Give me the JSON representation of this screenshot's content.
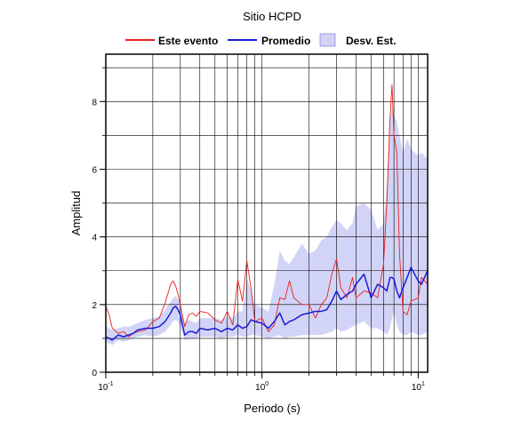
{
  "chart_data": {
    "type": "line",
    "title": "Sitio HCPD",
    "xlabel": "Periodo (s)",
    "ylabel": "Amplitud",
    "xscale": "log",
    "xlim": [
      0.1,
      11.5
    ],
    "ylim": [
      0,
      9.4
    ],
    "yticks": [
      0,
      2,
      4,
      6,
      8
    ],
    "xticks": [
      {
        "value": 0.1,
        "base": "10",
        "exp": "-1"
      },
      {
        "value": 1,
        "base": "10",
        "exp": "0"
      },
      {
        "value": 10,
        "base": "10",
        "exp": "1"
      }
    ],
    "grid": true,
    "legend_position": "top",
    "legend": [
      {
        "label": "Este evento",
        "kind": "line",
        "color": "#e8201e"
      },
      {
        "label": "Promedio",
        "kind": "line",
        "color": "#1a1ad9"
      },
      {
        "label": "Desv. Est.",
        "kind": "band",
        "color": "#d2d4f7"
      }
    ],
    "series": [
      {
        "name": "Este evento",
        "color": "#e8201e",
        "x": [
          0.1,
          0.105,
          0.11,
          0.12,
          0.13,
          0.14,
          0.15,
          0.16,
          0.18,
          0.2,
          0.22,
          0.24,
          0.26,
          0.27,
          0.28,
          0.29,
          0.3,
          0.32,
          0.34,
          0.36,
          0.38,
          0.4,
          0.45,
          0.5,
          0.55,
          0.6,
          0.65,
          0.7,
          0.75,
          0.8,
          0.85,
          0.9,
          1.0,
          1.1,
          1.2,
          1.3,
          1.4,
          1.5,
          1.6,
          1.8,
          2.0,
          2.2,
          2.4,
          2.6,
          2.8,
          3.0,
          3.2,
          3.5,
          3.8,
          4.0,
          4.5,
          5.0,
          5.5,
          6.0,
          6.3,
          6.6,
          6.8,
          7.0,
          7.3,
          7.6,
          8.0,
          8.5,
          9.0,
          10.0,
          10.5,
          11.5
        ],
        "y": [
          1.95,
          1.7,
          1.3,
          1.15,
          1.2,
          1.05,
          1.15,
          1.2,
          1.25,
          1.5,
          1.6,
          2.05,
          2.6,
          2.7,
          2.55,
          2.3,
          2.0,
          1.35,
          1.7,
          1.75,
          1.65,
          1.8,
          1.75,
          1.55,
          1.45,
          1.8,
          1.4,
          2.75,
          2.1,
          3.3,
          2.5,
          1.5,
          1.6,
          1.2,
          1.4,
          2.2,
          2.15,
          2.7,
          2.2,
          2.0,
          2.0,
          1.6,
          2.0,
          2.2,
          2.9,
          3.35,
          2.5,
          2.2,
          2.8,
          2.2,
          2.4,
          2.35,
          2.2,
          3.2,
          5.0,
          7.5,
          8.5,
          7.0,
          6.5,
          3.5,
          1.8,
          1.7,
          2.1,
          2.2,
          2.8,
          2.6
        ]
      },
      {
        "name": "Promedio",
        "color": "#1a1ad9",
        "x": [
          0.1,
          0.105,
          0.11,
          0.12,
          0.13,
          0.14,
          0.15,
          0.16,
          0.18,
          0.2,
          0.22,
          0.24,
          0.26,
          0.27,
          0.28,
          0.29,
          0.3,
          0.32,
          0.34,
          0.36,
          0.38,
          0.4,
          0.45,
          0.5,
          0.55,
          0.6,
          0.65,
          0.7,
          0.75,
          0.8,
          0.85,
          0.9,
          1.0,
          1.1,
          1.2,
          1.3,
          1.4,
          1.5,
          1.6,
          1.8,
          2.0,
          2.2,
          2.4,
          2.6,
          2.8,
          3.0,
          3.2,
          3.5,
          3.8,
          4.0,
          4.5,
          5.0,
          5.5,
          6.0,
          6.3,
          6.6,
          6.8,
          7.0,
          7.3,
          7.6,
          8.0,
          8.5,
          9.0,
          10.0,
          10.5,
          11.5
        ],
        "y": [
          1.05,
          1.0,
          0.95,
          1.1,
          1.05,
          1.1,
          1.15,
          1.25,
          1.3,
          1.3,
          1.35,
          1.5,
          1.75,
          1.9,
          1.95,
          1.85,
          1.7,
          1.1,
          1.2,
          1.2,
          1.15,
          1.3,
          1.25,
          1.3,
          1.2,
          1.3,
          1.25,
          1.4,
          1.3,
          1.35,
          1.55,
          1.5,
          1.45,
          1.3,
          1.5,
          1.75,
          1.4,
          1.5,
          1.55,
          1.7,
          1.75,
          1.8,
          1.8,
          1.85,
          2.1,
          2.4,
          2.15,
          2.3,
          2.4,
          2.6,
          2.9,
          2.2,
          2.6,
          2.5,
          2.4,
          2.8,
          2.8,
          2.75,
          2.4,
          2.2,
          2.5,
          2.8,
          3.1,
          2.7,
          2.6,
          3.0
        ]
      }
    ],
    "band": {
      "name": "Desv. Est.",
      "color": "#d2d4f7",
      "x": [
        0.1,
        0.105,
        0.11,
        0.12,
        0.13,
        0.14,
        0.15,
        0.16,
        0.18,
        0.2,
        0.22,
        0.24,
        0.26,
        0.27,
        0.28,
        0.29,
        0.3,
        0.32,
        0.34,
        0.36,
        0.38,
        0.4,
        0.45,
        0.5,
        0.55,
        0.6,
        0.65,
        0.7,
        0.75,
        0.8,
        0.85,
        0.9,
        1.0,
        1.1,
        1.2,
        1.3,
        1.4,
        1.5,
        1.6,
        1.8,
        2.0,
        2.2,
        2.4,
        2.6,
        2.8,
        3.0,
        3.2,
        3.5,
        3.8,
        4.0,
        4.5,
        5.0,
        5.5,
        6.0,
        6.3,
        6.6,
        6.8,
        7.0,
        7.3,
        7.6,
        8.0,
        8.5,
        9.0,
        10.0,
        10.5,
        11.5
      ],
      "upper": [
        1.35,
        1.3,
        1.25,
        1.3,
        1.35,
        1.35,
        1.4,
        1.45,
        1.55,
        1.6,
        1.65,
        1.85,
        2.1,
        2.2,
        2.25,
        2.15,
        2.05,
        1.45,
        1.55,
        1.5,
        1.45,
        1.6,
        1.6,
        1.6,
        1.55,
        1.65,
        1.6,
        1.8,
        1.8,
        2.8,
        2.4,
        2.0,
        1.9,
        1.8,
        2.6,
        3.6,
        3.3,
        3.2,
        3.4,
        3.8,
        3.5,
        3.6,
        3.9,
        4.0,
        4.3,
        4.5,
        4.4,
        4.2,
        4.4,
        4.9,
        5.0,
        4.8,
        4.2,
        4.4,
        5.5,
        7.5,
        7.8,
        7.6,
        7.4,
        7.0,
        6.5,
        6.9,
        6.6,
        6.4,
        6.5,
        6.3
      ],
      "lower": [
        0.9,
        0.85,
        0.8,
        0.95,
        0.9,
        0.95,
        1.0,
        1.05,
        1.1,
        1.05,
        1.1,
        1.2,
        1.4,
        1.5,
        1.55,
        1.5,
        1.35,
        0.95,
        1.0,
        1.0,
        1.0,
        1.05,
        1.05,
        1.05,
        1.0,
        1.05,
        1.05,
        1.1,
        1.05,
        1.05,
        1.1,
        1.1,
        1.05,
        1.0,
        1.05,
        1.1,
        1.0,
        1.05,
        1.05,
        1.1,
        1.1,
        1.1,
        1.1,
        1.15,
        1.2,
        1.3,
        1.2,
        1.25,
        1.35,
        1.4,
        1.5,
        1.3,
        1.3,
        1.2,
        1.1,
        1.3,
        1.6,
        1.8,
        1.4,
        1.2,
        1.1,
        1.1,
        1.2,
        1.1,
        1.1,
        1.2
      ]
    }
  }
}
